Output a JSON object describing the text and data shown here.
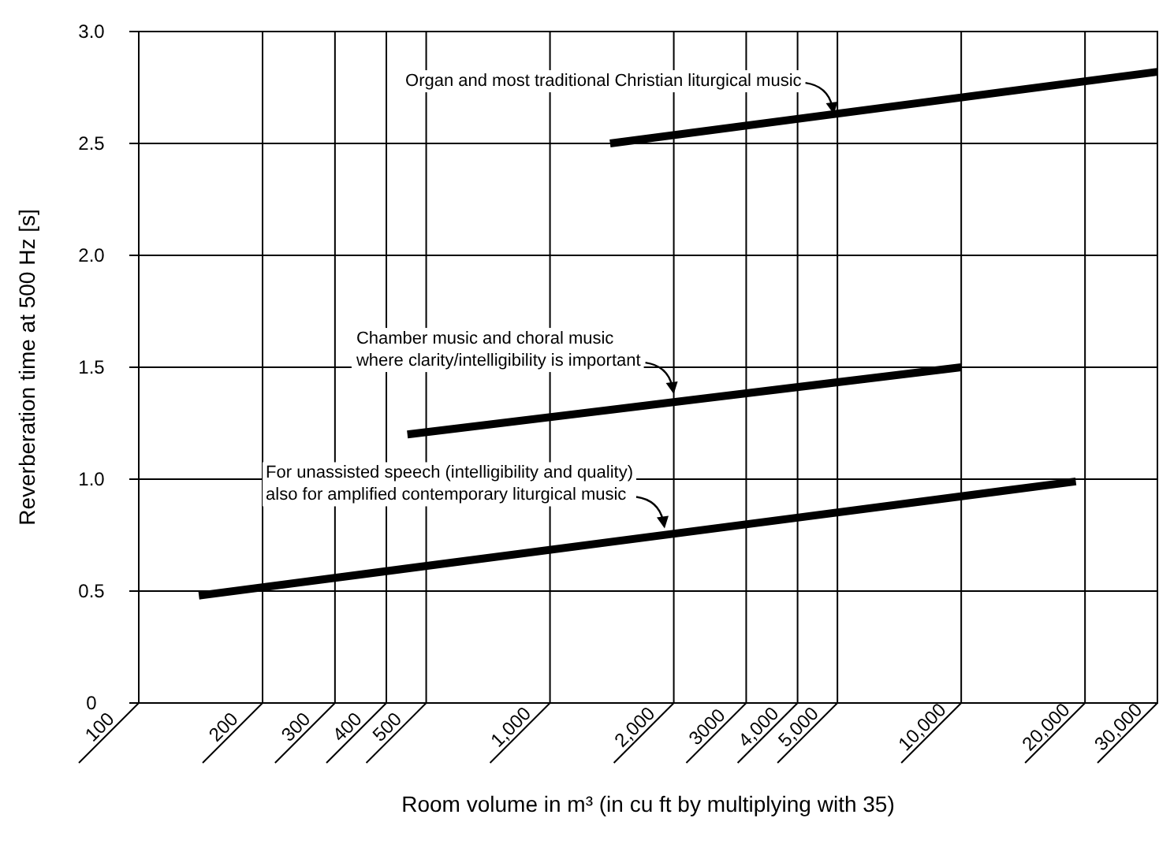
{
  "chart_data": {
    "type": "line",
    "xlabel": "Room volume in m³ (in cu ft  by multiplying with 35)",
    "ylabel": "Reverberation time at 500 Hz [s]",
    "log": "x",
    "grid": true,
    "xlim": [
      100,
      30000
    ],
    "xticks": [
      100,
      200,
      300,
      400,
      500,
      {
        "value": 1000,
        "label": "1,000"
      },
      {
        "value": 2000,
        "label": "2,000"
      },
      3000,
      {
        "value": 4000,
        "label": "4,000"
      },
      {
        "value": 5000,
        "label": "5,000"
      },
      {
        "value": 10000,
        "label": "10,000"
      },
      {
        "value": 20000,
        "label": "20,000"
      },
      {
        "value": 30000,
        "label": "30,000"
      }
    ],
    "ylim": [
      0,
      3
    ],
    "yticks": [
      0,
      0.5,
      {
        "value": 1,
        "label": "1.0"
      },
      1.5,
      {
        "value": 2,
        "label": "2.0"
      },
      2.5,
      {
        "value": 3,
        "label": "3.0"
      }
    ],
    "series": [
      {
        "color": "#000000",
        "x": [
          1400,
          30000
        ],
        "values": [
          2.5,
          2.82
        ]
      },
      {
        "color": "#000000",
        "x": [
          450,
          10000
        ],
        "values": [
          1.2,
          1.5
        ]
      },
      {
        "color": "#000000",
        "x": [
          140,
          19000
        ],
        "values": [
          0.48,
          0.99
        ]
      }
    ],
    "annotations": [
      {
        "text": "Organ and most traditional Christian liturgical music",
        "x": 4900,
        "y": 2.63
      },
      {
        "text": "Chamber music and choral music\nwhere clarity/intelligibility is important",
        "x": 2000,
        "y": 1.38
      },
      {
        "text": "For unassisted speech (intelligibility and quality)\nalso for amplified contemporary liturgical music",
        "x": 1900,
        "y": 0.78
      }
    ]
  }
}
